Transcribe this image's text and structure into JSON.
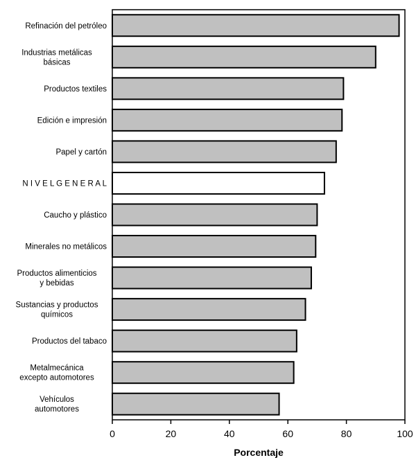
{
  "chart_data": {
    "type": "bar",
    "orientation": "horizontal",
    "title": "",
    "xlabel": "Porcentaje",
    "ylabel": "",
    "xlim": [
      0,
      100
    ],
    "xticks": [
      0,
      20,
      40,
      60,
      80,
      100
    ],
    "grid": false,
    "legend": "none",
    "categories": [
      [
        "Refinación del petróleo"
      ],
      [
        "Industrias metálicas",
        "básicas"
      ],
      [
        "Productos textiles"
      ],
      [
        "Edición e impresión"
      ],
      [
        "Papel y cartón"
      ],
      [
        "N I V E L   G E N E R A L"
      ],
      [
        "Caucho y plástico"
      ],
      [
        "Minerales no metálicos"
      ],
      [
        "Productos alimenticios",
        "y bebidas"
      ],
      [
        "Sustancias y productos",
        "químicos"
      ],
      [
        "Productos del tabaco"
      ],
      [
        "Metalmecánica",
        "excepto automotores"
      ],
      [
        "Vehículos",
        "automotores"
      ]
    ],
    "values": [
      98,
      90,
      79,
      78.5,
      76.5,
      72.5,
      70,
      69.5,
      68,
      66,
      63,
      62,
      57
    ],
    "highlight_index": 5,
    "colors": {
      "bar_fill": "#c0c0c0",
      "highlight_fill": "#ffffff",
      "bar_stroke": "#000000"
    }
  }
}
